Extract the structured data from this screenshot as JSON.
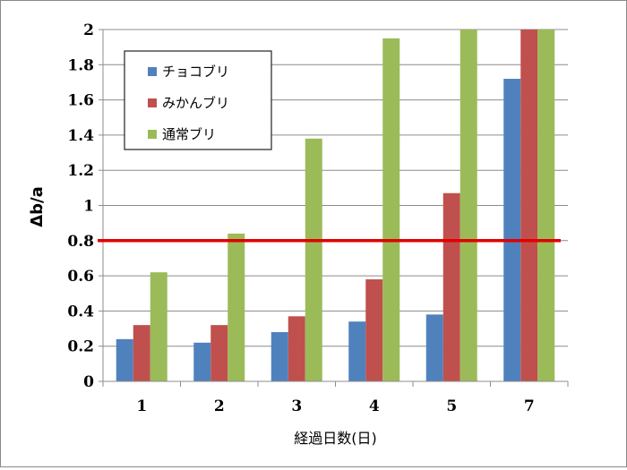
{
  "chart_data": {
    "type": "bar",
    "categories": [
      "1",
      "2",
      "3",
      "4",
      "5",
      "7"
    ],
    "series": [
      {
        "name": "チョコブリ",
        "color": "#4F81BD",
        "values": [
          0.24,
          0.22,
          0.28,
          0.34,
          0.38,
          1.72
        ]
      },
      {
        "name": "みかんブリ",
        "color": "#C0504D",
        "values": [
          0.32,
          0.32,
          0.37,
          0.58,
          1.07,
          2.0
        ]
      },
      {
        "name": "通常ブリ",
        "color": "#9BBB59",
        "values": [
          0.62,
          0.84,
          1.38,
          1.95,
          2.0,
          2.0
        ]
      }
    ],
    "xlabel": "経過日数(日)",
    "ylabel": "Δb/a",
    "ylim": [
      0,
      2
    ],
    "yticks": [
      "0",
      "0.2",
      "0.4",
      "0.6",
      "0.8",
      "1",
      "1.2",
      "1.4",
      "1.6",
      "1.8",
      "2"
    ],
    "threshold": {
      "value": 0.8,
      "color": "#E00000"
    },
    "grid": "horizontal",
    "legend_position": "top-left"
  }
}
